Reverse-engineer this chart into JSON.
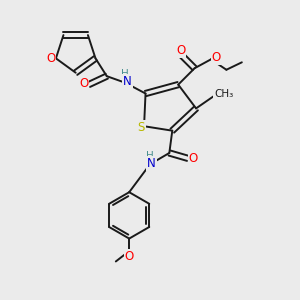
{
  "background_color": "#ebebeb",
  "bond_color": "#1a1a1a",
  "atom_colors": {
    "O": "#ff0000",
    "N": "#0000cd",
    "S": "#b8b800",
    "H": "#4a9090",
    "C": "#1a1a1a"
  },
  "font_size_atoms": 8.5,
  "font_size_h": 7.5
}
